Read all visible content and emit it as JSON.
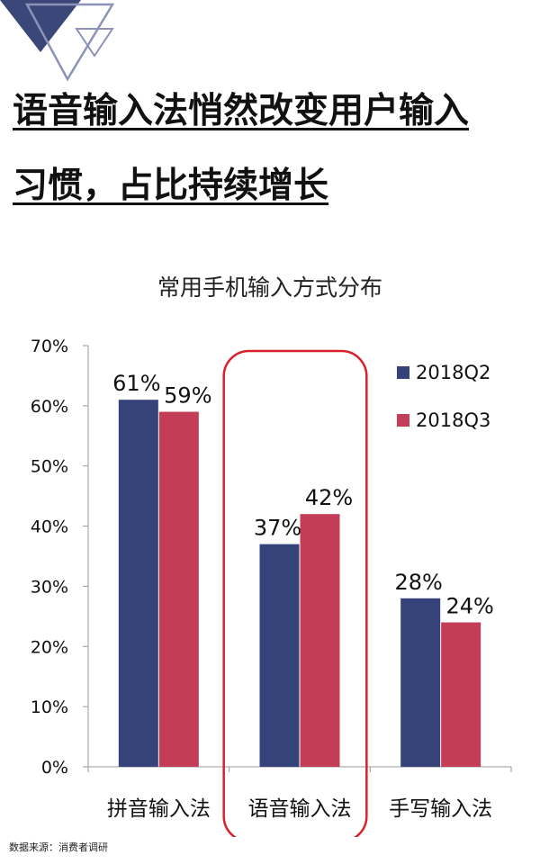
{
  "headline": {
    "line1": "语音输入法悄然改变用户输入",
    "line2": "习惯，占比持续增长"
  },
  "source_note": "数据来源：消费者调研",
  "colors": {
    "q2": "#35437a",
    "q3": "#c43d57",
    "highlight": "#d8222b",
    "logo_dark": "#3b4778",
    "logo_light": "#8d93b8"
  },
  "icons": {
    "logo": "triangle-logo-icon"
  },
  "chart_data": {
    "type": "bar",
    "title": "常用手机输入方式分布",
    "categories": [
      "拼音输入法",
      "语音输入法",
      "手写输入法"
    ],
    "series": [
      {
        "name": "2018Q2",
        "values": [
          61,
          37,
          28
        ],
        "labels": [
          "61%",
          "37%",
          "28%"
        ]
      },
      {
        "name": "2018Q3",
        "values": [
          59,
          42,
          24
        ],
        "labels": [
          "59%",
          "42%",
          "24%"
        ]
      }
    ],
    "ylim": [
      0,
      70
    ],
    "yticks": [
      0,
      10,
      20,
      30,
      40,
      50,
      60,
      70
    ],
    "ytick_labels": [
      "0%",
      "10%",
      "20%",
      "30%",
      "40%",
      "50%",
      "60%",
      "70%"
    ],
    "xlabel": "",
    "ylabel": "",
    "grid": false,
    "legend_position": "top-right",
    "highlighted_category": "语音输入法"
  }
}
